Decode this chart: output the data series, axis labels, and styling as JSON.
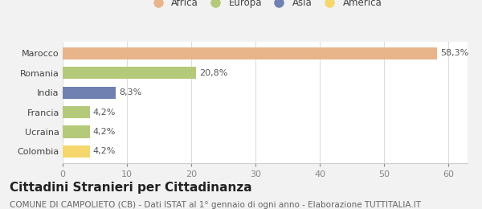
{
  "categories": [
    "Colombia",
    "Ucraina",
    "Francia",
    "India",
    "Romania",
    "Marocco"
  ],
  "values": [
    4.2,
    4.2,
    4.2,
    8.3,
    20.8,
    58.3
  ],
  "labels": [
    "4,2%",
    "4,2%",
    "4,2%",
    "8,3%",
    "20,8%",
    "58,3%"
  ],
  "colors": [
    "#f5d76e",
    "#b5c97a",
    "#b5c97a",
    "#7080b0",
    "#b5c97a",
    "#e8b48a"
  ],
  "legend_entries": [
    {
      "label": "Africa",
      "color": "#e8b48a"
    },
    {
      "label": "Europa",
      "color": "#b5c97a"
    },
    {
      "label": "Asia",
      "color": "#7080b0"
    },
    {
      "label": "America",
      "color": "#f5d76e"
    }
  ],
  "xlim": [
    0,
    63
  ],
  "xticks": [
    0,
    10,
    20,
    30,
    40,
    50,
    60
  ],
  "title": "Cittadini Stranieri per Cittadinanza",
  "subtitle": "COMUNE DI CAMPOLIETO (CB) - Dati ISTAT al 1° gennaio di ogni anno - Elaborazione TUTTITALIA.IT",
  "bg_color": "#f2f2f2",
  "bar_area_color": "#ffffff",
  "title_fontsize": 11,
  "subtitle_fontsize": 7.5,
  "tick_label_fontsize": 8,
  "bar_label_fontsize": 8,
  "legend_fontsize": 8.5
}
